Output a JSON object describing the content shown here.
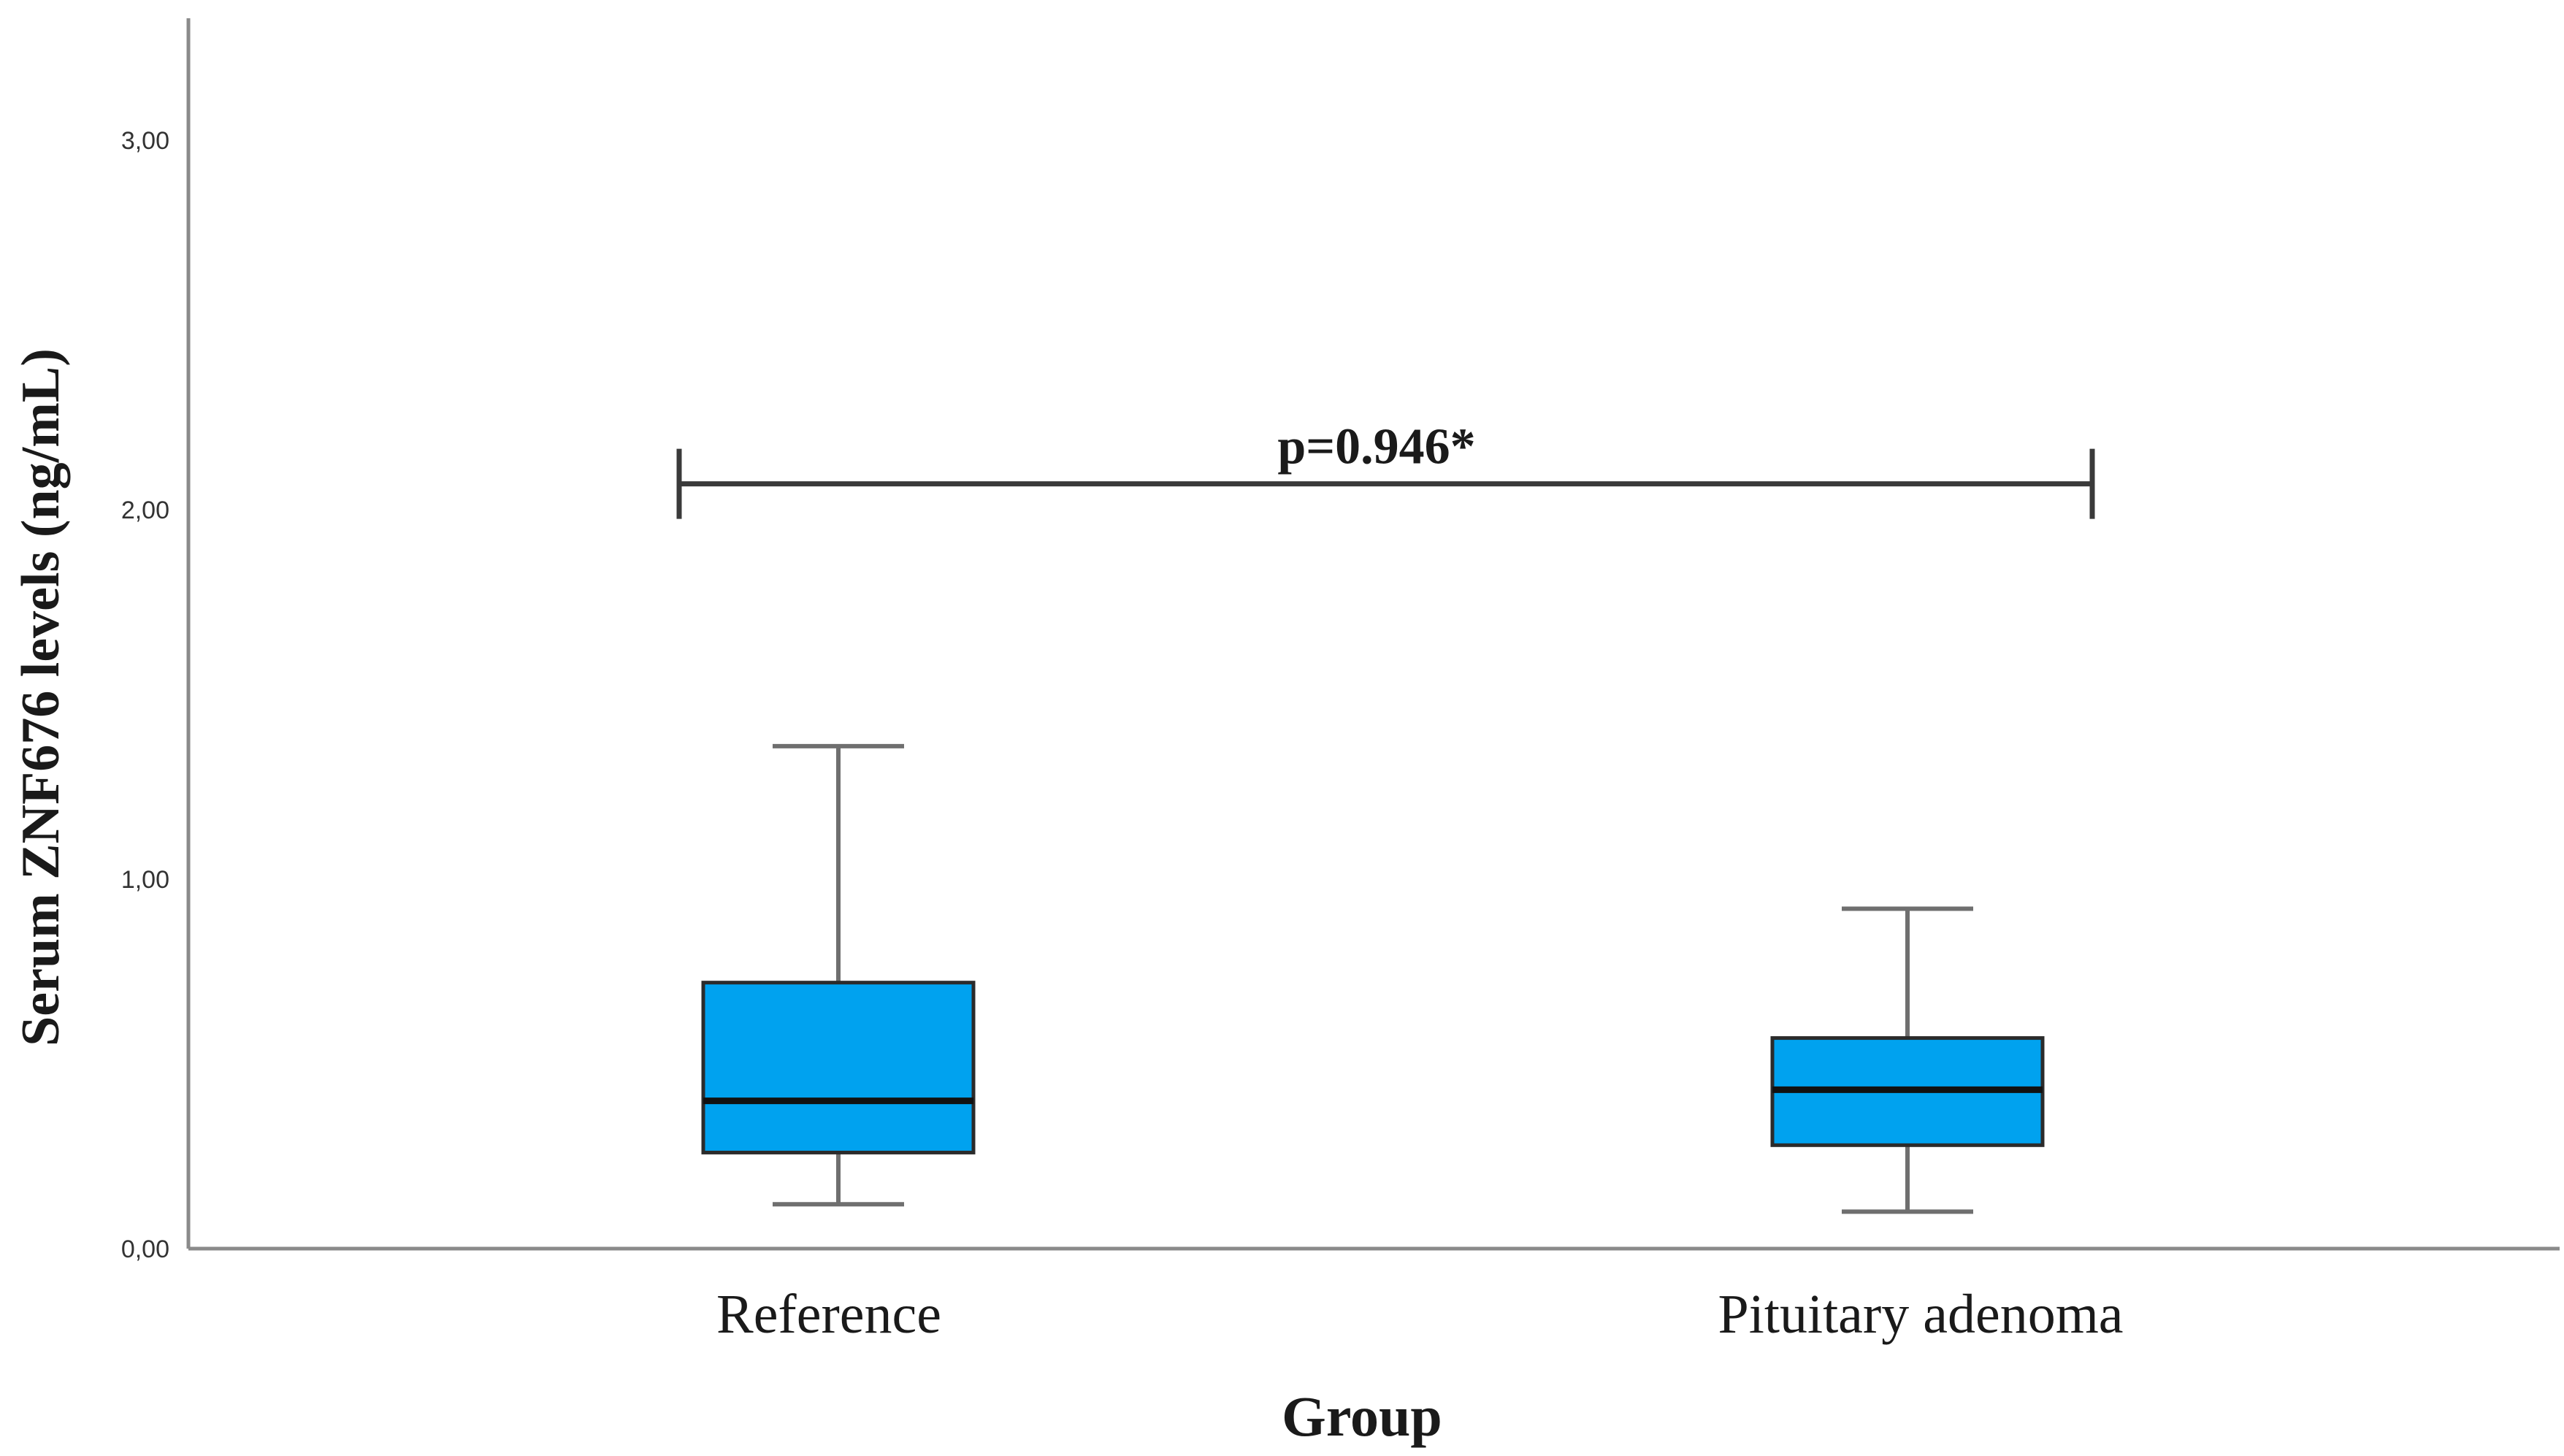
{
  "chart_data": {
    "type": "box",
    "xlabel": "Group",
    "ylabel": "Serum ZNF676 levels (ng/mL)",
    "ylim": [
      0,
      3.3
    ],
    "yticks": [
      {
        "value": 0,
        "label": "0,00"
      },
      {
        "value": 1,
        "label": "1,00"
      },
      {
        "value": 2,
        "label": "2,00"
      },
      {
        "value": 3,
        "label": "3,00"
      }
    ],
    "categories": [
      "Reference",
      "Pituitary adenoma"
    ],
    "boxes": [
      {
        "category": "Reference",
        "min": 0.12,
        "q1": 0.26,
        "median": 0.4,
        "q3": 0.72,
        "max": 1.36
      },
      {
        "category": "Pituitary adenoma",
        "min": 0.1,
        "q1": 0.28,
        "median": 0.43,
        "q3": 0.57,
        "max": 0.92
      }
    ],
    "box_color": "#00a2ef",
    "annotation": {
      "text": "p=0.946*",
      "y": 2.07,
      "from": "Reference",
      "to": "Pituitary adenoma"
    },
    "grid": false
  }
}
